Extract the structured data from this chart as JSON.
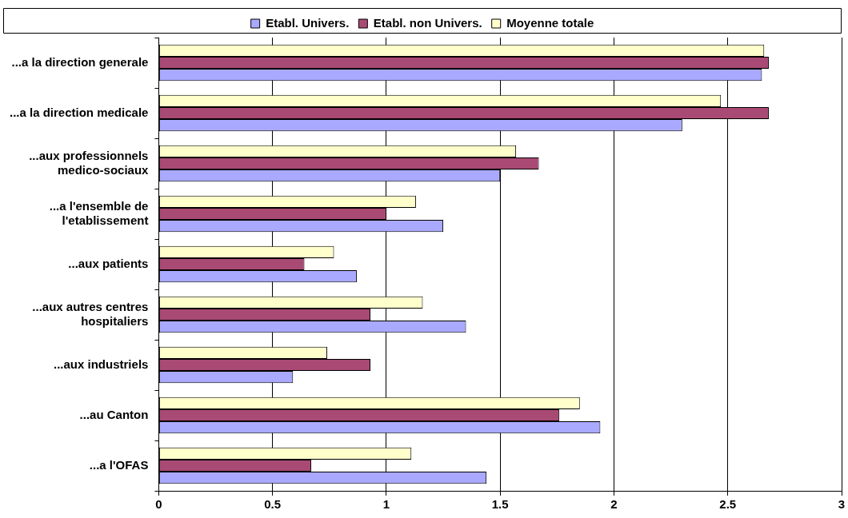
{
  "chart_data": {
    "type": "bar",
    "orientation": "horizontal",
    "categories": [
      "...a la direction generale",
      "...a la direction medicale",
      "...aux professionnels medico-sociaux",
      "...a l'ensemble de l'etablissement",
      "...aux patients",
      "...aux autres centres hospitaliers",
      "...aux industriels",
      "...au Canton",
      "...a l'OFAS"
    ],
    "series": [
      {
        "name": "Etabl. Univers.",
        "color": "#a9a9ff",
        "values": [
          2.65,
          2.3,
          1.5,
          1.25,
          0.87,
          1.35,
          0.59,
          1.94,
          1.44
        ]
      },
      {
        "name": "Etabl. non Univers.",
        "color": "#a94a74",
        "values": [
          2.68,
          2.68,
          1.67,
          1.0,
          0.64,
          0.93,
          0.93,
          1.76,
          0.67
        ]
      },
      {
        "name": "Moyenne totale",
        "color": "#ffffcc",
        "values": [
          2.66,
          2.47,
          1.57,
          1.13,
          0.77,
          1.16,
          0.74,
          1.85,
          1.11
        ]
      }
    ],
    "xlim": [
      0,
      3
    ],
    "xticks": [
      0,
      0.5,
      1,
      1.5,
      2,
      2.5,
      3
    ],
    "grid": "x",
    "legend": "top"
  }
}
